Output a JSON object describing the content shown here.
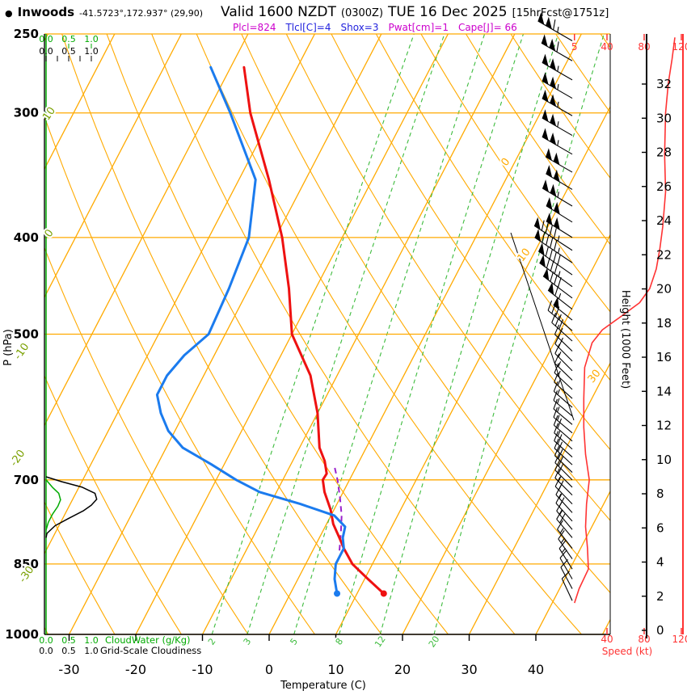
{
  "header": {
    "bullet": "●",
    "station": "Inwoods",
    "coords": "-41.5723°,172.937° (29,90)",
    "valid_main": "Valid 1600 NZDT",
    "valid_zulu": "(0300Z)",
    "valid_date": "TUE 16 Dec 2025",
    "fcst": "[15hrFcst@1751z]",
    "params": [
      {
        "text": "Plcl=824",
        "color": "#cc00cc"
      },
      {
        "text": "Tlcl[C]=4",
        "color": "#2222dd"
      },
      {
        "text": "Shox=3",
        "color": "#2222dd"
      },
      {
        "text": "Pwat[cm]=1",
        "color": "#cc00cc"
      },
      {
        "text": "Cape[J]= 66",
        "color": "#cc00cc"
      }
    ]
  },
  "axes": {
    "pressure_label": "P (hPa)",
    "pressure_ticks": [
      250,
      300,
      400,
      500,
      700,
      850,
      1000
    ],
    "temperature_label": "Temperature (C)",
    "temperature_ticks": [
      -30,
      -20,
      -10,
      0,
      10,
      20,
      30,
      40
    ],
    "height_label": "Height (1000 Feet)",
    "height_ticks": [
      0,
      2,
      4,
      6,
      8,
      10,
      12,
      14,
      16,
      18,
      20,
      22,
      24,
      26,
      28,
      30,
      32
    ],
    "speed_label": "Speed (kt)",
    "speed_ticks_top": [
      5,
      40,
      80,
      120
    ],
    "speed_ticks_bottom": [
      40,
      80,
      120
    ],
    "cloudwater_scale": {
      "ticks": [
        "0.0",
        "0.5",
        "1.0"
      ],
      "label": "CloudWater (g/Kg)"
    },
    "cloudiness_scale": {
      "ticks": [
        "0.0",
        "0.5",
        "1.0"
      ],
      "label": "Grid-Scale Cloudiness"
    }
  },
  "colors": {
    "grid_orange": "#ffaa00",
    "mixing_green": "#3dbb3d",
    "cloud_green": "#00aa00",
    "adiabat_label_olive": "#7aa000",
    "temperature_red": "#ee1111",
    "dewpoint_blue": "#1b7bee",
    "parcel_purple": "#9922cc",
    "speed_red": "#ff3333",
    "wind_black": "#000000"
  },
  "chart_data": {
    "type": "skewt_log_p_sounding",
    "pressure_range_hpa": [
      1000,
      250
    ],
    "temperature_range_c": [
      -35,
      45
    ],
    "isotherm_labels_c": [
      0,
      10,
      30
    ],
    "dry_adiabat_labels_c": [
      10,
      0,
      -10,
      -20,
      -30
    ],
    "mixing_ratio_lines_g_kg": [
      2,
      3,
      5,
      8,
      12,
      20
    ],
    "surface": {
      "pressure_hpa": 910,
      "temperature_c": 14,
      "dewpoint_c": 7
    },
    "temperature_profile_p_c": [
      [
        910,
        14
      ],
      [
        880,
        10.5
      ],
      [
        850,
        7
      ],
      [
        820,
        4.5
      ],
      [
        800,
        3
      ],
      [
        775,
        1
      ],
      [
        750,
        -0.5
      ],
      [
        720,
        -2.8
      ],
      [
        700,
        -4
      ],
      [
        690,
        -3.9
      ],
      [
        670,
        -5.2
      ],
      [
        650,
        -7
      ],
      [
        600,
        -10
      ],
      [
        550,
        -14
      ],
      [
        500,
        -20
      ],
      [
        450,
        -24
      ],
      [
        400,
        -29
      ],
      [
        350,
        -35.5
      ],
      [
        300,
        -43.5
      ],
      [
        270,
        -48
      ]
    ],
    "dewpoint_profile_p_c": [
      [
        910,
        7
      ],
      [
        880,
        5.5
      ],
      [
        850,
        4.5
      ],
      [
        820,
        4.5
      ],
      [
        800,
        3.5
      ],
      [
        780,
        3
      ],
      [
        760,
        0.5
      ],
      [
        740,
        -5.5
      ],
      [
        720,
        -12.5
      ],
      [
        700,
        -17
      ],
      [
        675,
        -22
      ],
      [
        650,
        -27.5
      ],
      [
        625,
        -31
      ],
      [
        600,
        -33.5
      ],
      [
        575,
        -35.5
      ],
      [
        550,
        -35.5
      ],
      [
        525,
        -34.5
      ],
      [
        500,
        -32.5
      ],
      [
        450,
        -33
      ],
      [
        400,
        -34
      ],
      [
        350,
        -37.5
      ],
      [
        300,
        -46.5
      ],
      [
        270,
        -53
      ]
    ],
    "parcel_path_p_c": [
      [
        824,
        4
      ],
      [
        790,
        2.8
      ],
      [
        760,
        1.6
      ],
      [
        730,
        0
      ],
      [
        700,
        -1.8
      ],
      [
        680,
        -3.2
      ]
    ],
    "wind_profile_p_kt_dir": [
      [
        925,
        8,
        335
      ],
      [
        900,
        10,
        332
      ],
      [
        880,
        12,
        330
      ],
      [
        860,
        15,
        328
      ],
      [
        840,
        15,
        325
      ],
      [
        820,
        16,
        322
      ],
      [
        800,
        18,
        320
      ],
      [
        785,
        16,
        320
      ],
      [
        770,
        18,
        318
      ],
      [
        755,
        16,
        318
      ],
      [
        740,
        18,
        316
      ],
      [
        725,
        16,
        315
      ],
      [
        712,
        18,
        315
      ],
      [
        700,
        20,
        315
      ],
      [
        688,
        18,
        314
      ],
      [
        676,
        20,
        313
      ],
      [
        664,
        18,
        312
      ],
      [
        652,
        16,
        312
      ],
      [
        640,
        18,
        311
      ],
      [
        628,
        15,
        310
      ],
      [
        616,
        16,
        310
      ],
      [
        604,
        15,
        310
      ],
      [
        592,
        14,
        311
      ],
      [
        580,
        15,
        312
      ],
      [
        568,
        14,
        313
      ],
      [
        556,
        15,
        314
      ],
      [
        544,
        16,
        315
      ],
      [
        532,
        18,
        315
      ],
      [
        520,
        22,
        314
      ],
      [
        508,
        28,
        312
      ],
      [
        496,
        35,
        310
      ],
      [
        484,
        50,
        309
      ],
      [
        472,
        65,
        308
      ],
      [
        460,
        78,
        307
      ],
      [
        448,
        85,
        306
      ],
      [
        436,
        90,
        305
      ],
      [
        424,
        94,
        304
      ],
      [
        412,
        97,
        303
      ],
      [
        400,
        100,
        302
      ],
      [
        386,
        102,
        302
      ],
      [
        372,
        103,
        301
      ],
      [
        358,
        102,
        301
      ],
      [
        344,
        102,
        300
      ],
      [
        330,
        103,
        300
      ],
      [
        316,
        103,
        300
      ],
      [
        302,
        104,
        300
      ],
      [
        290,
        105,
        300
      ],
      [
        278,
        107,
        300
      ],
      [
        266,
        110,
        300
      ],
      [
        254,
        113,
        300
      ]
    ],
    "wind_speed_profile_p_kt": [
      [
        930,
        5
      ],
      [
        900,
        10
      ],
      [
        860,
        20
      ],
      [
        820,
        19
      ],
      [
        780,
        17
      ],
      [
        740,
        18
      ],
      [
        700,
        21
      ],
      [
        660,
        17
      ],
      [
        620,
        15
      ],
      [
        580,
        15
      ],
      [
        540,
        16
      ],
      [
        510,
        24
      ],
      [
        495,
        35
      ],
      [
        480,
        55
      ],
      [
        465,
        75
      ],
      [
        450,
        86
      ],
      [
        430,
        93
      ],
      [
        410,
        97
      ],
      [
        390,
        100
      ],
      [
        360,
        103
      ],
      [
        330,
        102
      ],
      [
        300,
        103
      ],
      [
        280,
        106
      ],
      [
        265,
        110
      ],
      [
        252,
        113
      ]
    ],
    "cloud_water_profile_p_gkg": [
      [
        700,
        0
      ],
      [
        712,
        0.14
      ],
      [
        722,
        0.28
      ],
      [
        733,
        0.32
      ],
      [
        744,
        0.26
      ],
      [
        758,
        0.14
      ],
      [
        772,
        0.05
      ],
      [
        786,
        0
      ]
    ],
    "grid_scale_cloudiness_profile_p_frac": [
      [
        695,
        0
      ],
      [
        703,
        0.35
      ],
      [
        712,
        0.8
      ],
      [
        722,
        1.08
      ],
      [
        732,
        1.12
      ],
      [
        742,
        1.0
      ],
      [
        752,
        0.82
      ],
      [
        765,
        0.5
      ],
      [
        778,
        0.2
      ],
      [
        792,
        0.02
      ],
      [
        800,
        0
      ]
    ]
  }
}
